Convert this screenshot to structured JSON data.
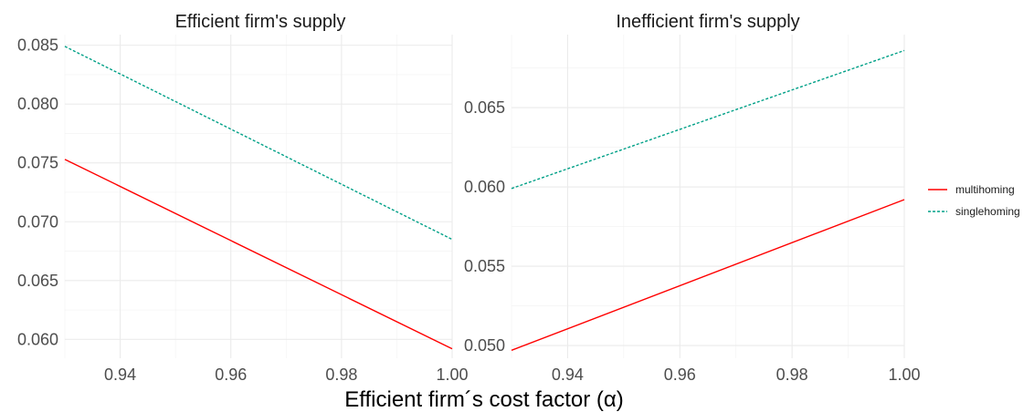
{
  "shared_xlabel": "Efficient firm´s cost factor (α)",
  "legend": {
    "position": "right",
    "items": [
      {
        "label": "multihoming",
        "color": "#ff0000",
        "dash": "solid"
      },
      {
        "label": "singlehoming",
        "color": "#00a087",
        "dash": "dotted"
      }
    ]
  },
  "chart_data": [
    {
      "type": "line",
      "title": "Efficient firm's supply",
      "xlim": [
        0.93,
        1.0
      ],
      "ylim": [
        0.0584,
        0.0859
      ],
      "xticks": [
        0.94,
        0.96,
        0.98,
        1.0
      ],
      "xtick_labels": [
        "0.94",
        "0.96",
        "0.98",
        "1.00"
      ],
      "yticks": [
        0.06,
        0.065,
        0.07,
        0.075,
        0.08,
        0.085
      ],
      "ytick_labels": [
        "0.060",
        "0.065",
        "0.070",
        "0.075",
        "0.080",
        "0.085"
      ],
      "grid": true,
      "series": [
        {
          "name": "multihoming",
          "x": [
            0.93,
            1.0
          ],
          "y": [
            0.0753,
            0.0592
          ]
        },
        {
          "name": "singlehoming",
          "x": [
            0.93,
            1.0
          ],
          "y": [
            0.0849,
            0.0685
          ]
        }
      ]
    },
    {
      "type": "line",
      "title": "Inefficient firm's supply",
      "xlim": [
        0.93,
        1.0
      ],
      "ylim": [
        0.0492,
        0.0696
      ],
      "xticks": [
        0.94,
        0.96,
        0.98,
        1.0
      ],
      "xtick_labels": [
        "0.94",
        "0.96",
        "0.98",
        "1.00"
      ],
      "yticks": [
        0.05,
        0.055,
        0.06,
        0.065
      ],
      "ytick_labels": [
        "0.050",
        "0.055",
        "0.060",
        "0.065"
      ],
      "grid": true,
      "series": [
        {
          "name": "multihoming",
          "x": [
            0.93,
            1.0
          ],
          "y": [
            0.0497,
            0.0592
          ]
        },
        {
          "name": "singlehoming",
          "x": [
            0.93,
            1.0
          ],
          "y": [
            0.0599,
            0.0686
          ]
        }
      ]
    }
  ]
}
